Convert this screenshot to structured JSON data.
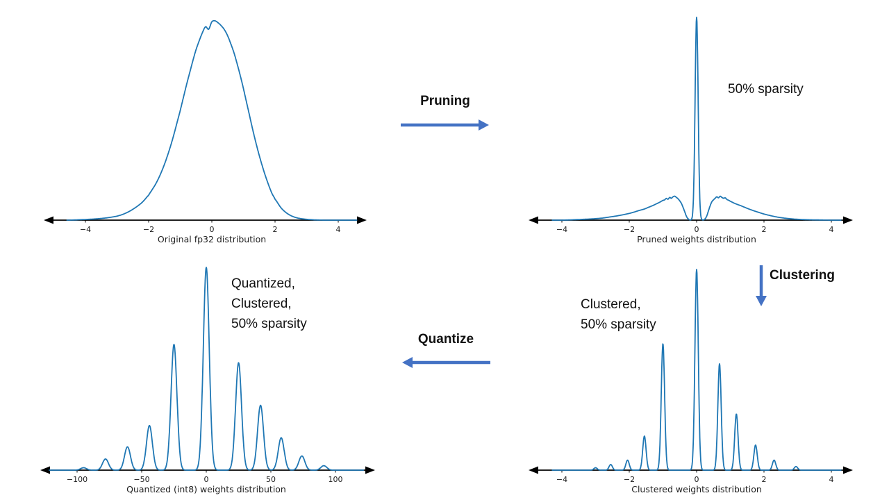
{
  "colors": {
    "curve": "#1f77b4",
    "arrow": "#4472c4",
    "axis": "#000000",
    "text": "#1a1a1a"
  },
  "flow": {
    "pruning": "Pruning",
    "clustering": "Clustering",
    "quantize": "Quantize"
  },
  "chart_data": [
    {
      "id": "original",
      "type": "line",
      "title": "Original fp32 distribution",
      "x_ticks": [
        -4,
        -2,
        0,
        2,
        4
      ],
      "x_range": [
        -4.6,
        4.6
      ],
      "grid": false,
      "curve": {
        "x": [
          -4.5,
          -4.2,
          -3.9,
          -3.6,
          -3.3,
          -3.0,
          -2.8,
          -2.6,
          -2.4,
          -2.2,
          -2.0,
          -1.9,
          -1.8,
          -1.7,
          -1.6,
          -1.5,
          -1.4,
          -1.3,
          -1.2,
          -1.1,
          -1.0,
          -0.9,
          -0.8,
          -0.7,
          -0.6,
          -0.5,
          -0.4,
          -0.3,
          -0.2,
          -0.1,
          0.0,
          0.1,
          0.2,
          0.3,
          0.4,
          0.5,
          0.6,
          0.7,
          0.8,
          0.9,
          1.0,
          1.1,
          1.2,
          1.3,
          1.4,
          1.5,
          1.6,
          1.7,
          1.8,
          1.9,
          2.0,
          2.2,
          2.4,
          2.6,
          2.8,
          3.0,
          3.3,
          3.6
        ],
        "y": [
          0.0,
          0.002,
          0.004,
          0.007,
          0.012,
          0.02,
          0.03,
          0.045,
          0.065,
          0.09,
          0.125,
          0.15,
          0.175,
          0.205,
          0.24,
          0.28,
          0.325,
          0.375,
          0.43,
          0.49,
          0.55,
          0.615,
          0.68,
          0.74,
          0.8,
          0.855,
          0.9,
          0.94,
          0.97,
          0.958,
          0.995,
          1.0,
          0.99,
          0.975,
          0.955,
          0.925,
          0.885,
          0.84,
          0.785,
          0.725,
          0.66,
          0.59,
          0.52,
          0.45,
          0.385,
          0.325,
          0.27,
          0.22,
          0.175,
          0.135,
          0.105,
          0.06,
          0.032,
          0.016,
          0.008,
          0.004,
          0.001,
          0.0
        ]
      }
    },
    {
      "id": "pruned",
      "type": "line",
      "title": "Pruned weights distribution",
      "annotation": "50% sparsity",
      "x_ticks": [
        -4,
        -2,
        0,
        2,
        4
      ],
      "x_range": [
        -4.3,
        4.3
      ],
      "grid": false,
      "spike_sigma": 0.045,
      "spikes": [
        {
          "x": 0.0,
          "h": 1.0
        }
      ],
      "curve": {
        "x": [
          -4.0,
          -3.5,
          -3.1,
          -2.8,
          -2.6,
          -2.4,
          -2.2,
          -2.0,
          -1.85,
          -1.7,
          -1.55,
          -1.4,
          -1.3,
          -1.2,
          -1.1,
          -1.0,
          -0.95,
          -0.9,
          -0.85,
          -0.8,
          -0.75,
          -0.7,
          -0.65,
          -0.6,
          -0.55,
          -0.5,
          -0.45,
          -0.4,
          -0.35,
          -0.3,
          -0.25,
          -0.2,
          0.2,
          0.25,
          0.3,
          0.35,
          0.4,
          0.45,
          0.5,
          0.55,
          0.6,
          0.65,
          0.7,
          0.75,
          0.8,
          0.85,
          0.9,
          0.95,
          1.0,
          1.1,
          1.2,
          1.3,
          1.4,
          1.55,
          1.7,
          1.85,
          2.0,
          2.2,
          2.4,
          2.6,
          2.9,
          3.3,
          4.0
        ],
        "y": [
          0.0,
          0.003,
          0.006,
          0.01,
          0.015,
          0.02,
          0.026,
          0.033,
          0.04,
          0.048,
          0.055,
          0.065,
          0.072,
          0.08,
          0.088,
          0.097,
          0.1,
          0.107,
          0.103,
          0.112,
          0.108,
          0.115,
          0.118,
          0.112,
          0.105,
          0.095,
          0.082,
          0.062,
          0.04,
          0.018,
          0.006,
          0.001,
          0.001,
          0.006,
          0.02,
          0.045,
          0.07,
          0.09,
          0.1,
          0.108,
          0.115,
          0.11,
          0.118,
          0.112,
          0.108,
          0.11,
          0.102,
          0.098,
          0.093,
          0.085,
          0.078,
          0.072,
          0.065,
          0.055,
          0.046,
          0.038,
          0.03,
          0.022,
          0.015,
          0.01,
          0.005,
          0.002,
          0.0
        ]
      }
    },
    {
      "id": "quantized",
      "type": "line",
      "title": "Quantized (int8) weights distribution",
      "annotation": "Quantized,\nClustered,\n50% sparsity",
      "x_ticks": [
        -100,
        -50,
        0,
        50,
        100
      ],
      "x_range": [
        -122,
        122
      ],
      "grid": false,
      "spike_sigma": 2.3,
      "spikes": [
        {
          "x": -95,
          "h": 0.012
        },
        {
          "x": -78,
          "h": 0.055
        },
        {
          "x": -61,
          "h": 0.115
        },
        {
          "x": -44,
          "h": 0.22
        },
        {
          "x": -25,
          "h": 0.62
        },
        {
          "x": 0,
          "h": 1.0
        },
        {
          "x": 25,
          "h": 0.53
        },
        {
          "x": 42,
          "h": 0.32
        },
        {
          "x": 58,
          "h": 0.16
        },
        {
          "x": 74,
          "h": 0.07
        },
        {
          "x": 91,
          "h": 0.022
        }
      ]
    },
    {
      "id": "clustered",
      "type": "line",
      "title": "Clustered weights distribution",
      "annotation": "Clustered,\n50% sparsity",
      "x_ticks": [
        -4,
        -2,
        0,
        2,
        4
      ],
      "x_range": [
        -4.3,
        4.3
      ],
      "grid": false,
      "spike_sigma": 0.05,
      "spikes": [
        {
          "x": -3.0,
          "h": 0.012
        },
        {
          "x": -2.55,
          "h": 0.028
        },
        {
          "x": -2.05,
          "h": 0.05
        },
        {
          "x": -1.55,
          "h": 0.17
        },
        {
          "x": -1.0,
          "h": 0.63
        },
        {
          "x": 0.0,
          "h": 1.0
        },
        {
          "x": 0.68,
          "h": 0.53
        },
        {
          "x": 1.18,
          "h": 0.28
        },
        {
          "x": 1.75,
          "h": 0.125
        },
        {
          "x": 2.3,
          "h": 0.05
        },
        {
          "x": 2.95,
          "h": 0.018
        }
      ]
    }
  ]
}
